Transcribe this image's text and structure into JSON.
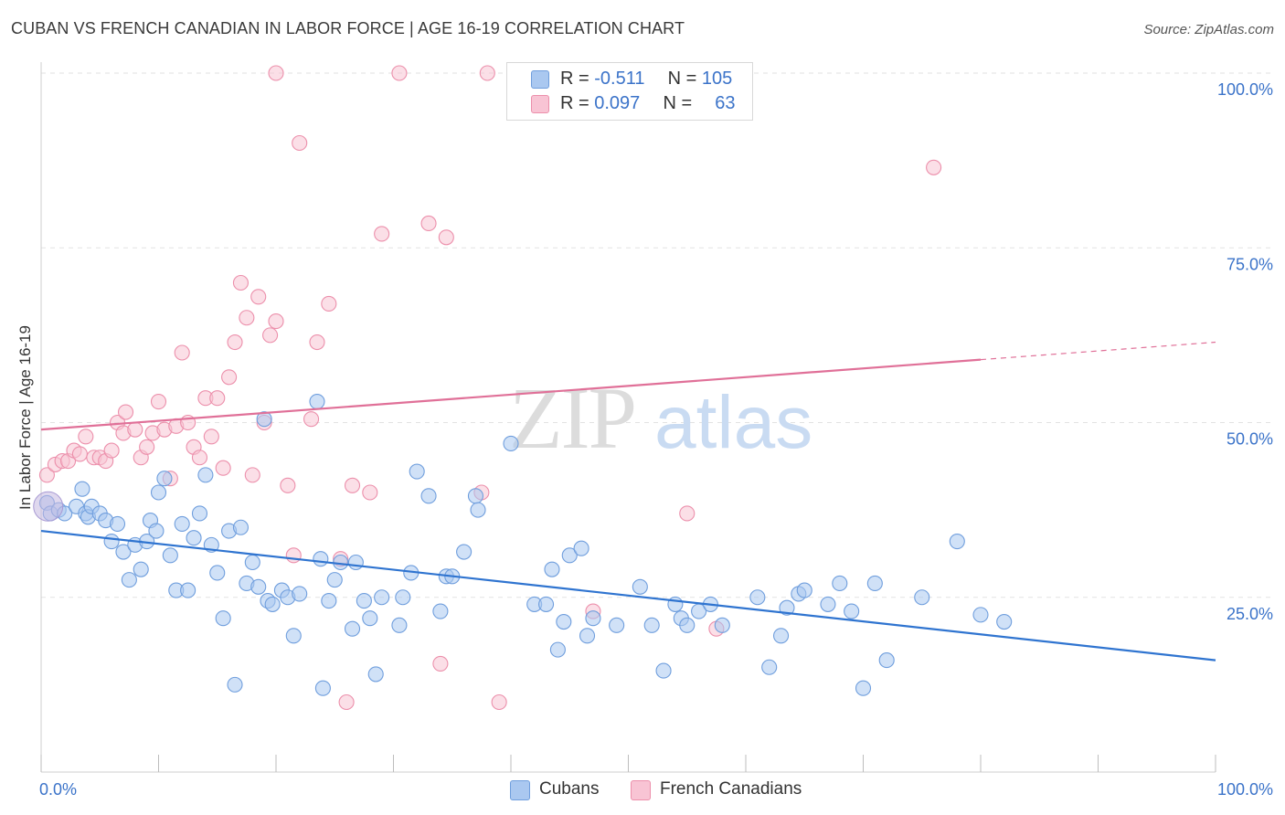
{
  "title": "CUBAN VS FRENCH CANADIAN IN LABOR FORCE | AGE 16-19 CORRELATION CHART",
  "source": "Source: ZipAtlas.com",
  "watermark": {
    "zip": "ZIP",
    "atlas": "atlas"
  },
  "legend": {
    "r_label": "R =",
    "n_label": "N =",
    "cubans": {
      "r": "-0.511",
      "n": "105"
    },
    "french": {
      "r": "0.097",
      "n": "63"
    }
  },
  "bottom_legend": {
    "cubans": "Cubans",
    "french": "French Canadians"
  },
  "colors": {
    "cubans_fill": "#aac8f0",
    "cubans_stroke": "#6f9edd",
    "cubans_line": "#2f74d0",
    "french_fill": "#f8c4d4",
    "french_stroke": "#ec8fab",
    "french_line": "#e07098",
    "tick_label": "#3b73c9",
    "grid": "#e2e2e2"
  },
  "chart_data": {
    "type": "scatter",
    "xlabel": "",
    "ylabel": "In Labor Force | Age 16-19",
    "xlim": [
      0,
      100
    ],
    "ylim": [
      0,
      100
    ],
    "x_tick_labels": [
      "0.0%",
      "100.0%"
    ],
    "y_tick_labels": [
      "100.0%",
      "75.0%",
      "50.0%",
      "25.0%"
    ],
    "y_ticks": [
      100,
      75,
      50,
      25
    ],
    "grid": true,
    "series": [
      {
        "name": "Cubans",
        "trend": {
          "x0": 0,
          "y0": 34.5,
          "x1": 100,
          "y1": 16.0,
          "dashed_from": null
        },
        "points": [
          [
            0.5,
            38.5
          ],
          [
            0.8,
            37
          ],
          [
            1.5,
            37.5
          ],
          [
            2,
            37
          ],
          [
            3,
            38
          ],
          [
            3.5,
            40.5
          ],
          [
            3.8,
            37
          ],
          [
            4,
            36.5
          ],
          [
            4.3,
            38
          ],
          [
            5,
            37
          ],
          [
            5.5,
            36
          ],
          [
            6,
            33
          ],
          [
            6.5,
            35.5
          ],
          [
            7,
            31.5
          ],
          [
            7.5,
            27.5
          ],
          [
            8,
            32.5
          ],
          [
            8.5,
            29
          ],
          [
            9,
            33
          ],
          [
            9.3,
            36
          ],
          [
            9.8,
            34.5
          ],
          [
            10,
            40
          ],
          [
            10.5,
            42
          ],
          [
            11,
            31
          ],
          [
            11.5,
            26
          ],
          [
            12,
            35.5
          ],
          [
            12.5,
            26
          ],
          [
            13,
            33.5
          ],
          [
            13.5,
            37
          ],
          [
            14,
            42.5
          ],
          [
            14.5,
            32.5
          ],
          [
            15,
            28.5
          ],
          [
            15.5,
            22
          ],
          [
            16,
            34.5
          ],
          [
            16.5,
            12.5
          ],
          [
            17,
            35
          ],
          [
            17.5,
            27
          ],
          [
            18,
            30
          ],
          [
            18.5,
            26.5
          ],
          [
            19,
            50.5
          ],
          [
            19.3,
            24.5
          ],
          [
            19.7,
            24
          ],
          [
            20.5,
            26
          ],
          [
            21,
            25
          ],
          [
            21.5,
            19.5
          ],
          [
            22,
            25.5
          ],
          [
            23.5,
            53
          ],
          [
            23.8,
            30.5
          ],
          [
            24,
            12
          ],
          [
            24.5,
            24.5
          ],
          [
            25,
            27.5
          ],
          [
            25.5,
            30
          ],
          [
            26.5,
            20.5
          ],
          [
            26.8,
            30
          ],
          [
            27.5,
            24.5
          ],
          [
            28,
            22
          ],
          [
            28.5,
            14
          ],
          [
            29,
            25
          ],
          [
            30.5,
            21
          ],
          [
            30.8,
            25
          ],
          [
            31.5,
            28.5
          ],
          [
            32,
            43
          ],
          [
            33,
            39.5
          ],
          [
            34,
            23
          ],
          [
            34.5,
            28
          ],
          [
            35,
            28
          ],
          [
            36,
            31.5
          ],
          [
            37,
            39.5
          ],
          [
            37.2,
            37.5
          ],
          [
            40,
            47
          ],
          [
            42,
            24
          ],
          [
            43,
            24
          ],
          [
            43.5,
            29
          ],
          [
            44,
            17.5
          ],
          [
            44.5,
            21.5
          ],
          [
            45,
            31
          ],
          [
            46,
            32
          ],
          [
            46.5,
            19.5
          ],
          [
            47,
            22
          ],
          [
            49,
            21
          ],
          [
            51,
            26.5
          ],
          [
            52,
            21
          ],
          [
            53,
            14.5
          ],
          [
            54,
            24
          ],
          [
            54.5,
            22
          ],
          [
            55,
            21
          ],
          [
            56,
            23
          ],
          [
            57,
            24
          ],
          [
            58,
            21
          ],
          [
            61,
            25
          ],
          [
            62,
            15
          ],
          [
            63,
            19.5
          ],
          [
            63.5,
            23.5
          ],
          [
            64.5,
            25.5
          ],
          [
            65,
            26
          ],
          [
            67,
            24
          ],
          [
            68,
            27
          ],
          [
            69,
            23
          ],
          [
            70,
            12
          ],
          [
            71,
            27
          ],
          [
            72,
            16
          ],
          [
            75,
            25
          ],
          [
            78,
            33
          ],
          [
            80,
            22.5
          ],
          [
            82,
            21.5
          ]
        ]
      },
      {
        "name": "French Canadians",
        "trend": {
          "x0": 0,
          "y0": 49.0,
          "x1": 100,
          "y1": 61.5,
          "dashed_from": 80
        },
        "points": [
          [
            0.5,
            42.5
          ],
          [
            1.2,
            44
          ],
          [
            1.8,
            44.5
          ],
          [
            2.3,
            44.5
          ],
          [
            2.8,
            46
          ],
          [
            3.3,
            45.5
          ],
          [
            3.8,
            48
          ],
          [
            4.5,
            45
          ],
          [
            5,
            45
          ],
          [
            5.5,
            44.5
          ],
          [
            6,
            46
          ],
          [
            6.5,
            50
          ],
          [
            7,
            48.5
          ],
          [
            7.2,
            51.5
          ],
          [
            8,
            49
          ],
          [
            8.5,
            45
          ],
          [
            9,
            46.5
          ],
          [
            9.5,
            48.5
          ],
          [
            10,
            53
          ],
          [
            10.5,
            49
          ],
          [
            11,
            42
          ],
          [
            11.5,
            49.5
          ],
          [
            12,
            60
          ],
          [
            12.5,
            50
          ],
          [
            13,
            46.5
          ],
          [
            13.5,
            45
          ],
          [
            14,
            53.5
          ],
          [
            14.5,
            48
          ],
          [
            15,
            53.5
          ],
          [
            15.5,
            43.5
          ],
          [
            16,
            56.5
          ],
          [
            16.5,
            61.5
          ],
          [
            17,
            70
          ],
          [
            17.5,
            65
          ],
          [
            18,
            42.5
          ],
          [
            18.5,
            68
          ],
          [
            19,
            50
          ],
          [
            19.5,
            62.5
          ],
          [
            20,
            64.5
          ],
          [
            21,
            41
          ],
          [
            21.5,
            31
          ],
          [
            20,
            100
          ],
          [
            22,
            90
          ],
          [
            23,
            50.5
          ],
          [
            23.5,
            61.5
          ],
          [
            24.5,
            67
          ],
          [
            25.5,
            30.5
          ],
          [
            26,
            10
          ],
          [
            26.5,
            41
          ],
          [
            28,
            40
          ],
          [
            29,
            77
          ],
          [
            30.5,
            100
          ],
          [
            33,
            78.5
          ],
          [
            34,
            15.5
          ],
          [
            34.5,
            76.5
          ],
          [
            37.5,
            40
          ],
          [
            38,
            100
          ],
          [
            39,
            10
          ],
          [
            47,
            23
          ],
          [
            55,
            37
          ],
          [
            57.5,
            20.5
          ],
          [
            76,
            86.5
          ]
        ]
      }
    ]
  }
}
